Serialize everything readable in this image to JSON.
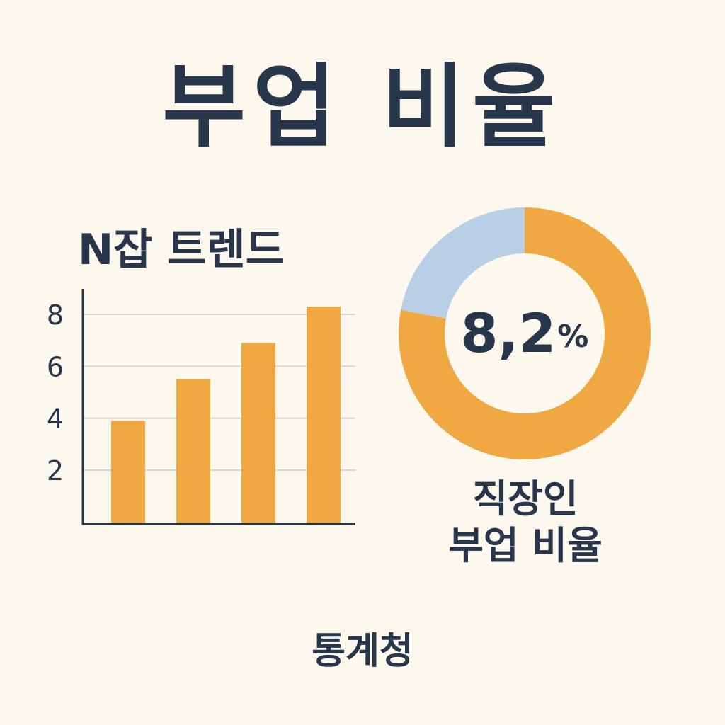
{
  "title": "부업 비율",
  "source": "통계청",
  "colors": {
    "background": "#FCF8EE",
    "text": "#27364B",
    "bar": "#F0A842",
    "donut_main": "#F0A842",
    "donut_rest": "#B8CFE5",
    "gridline": "#D5D5D5"
  },
  "chart_data": [
    {
      "type": "bar",
      "title": "N잡 트렌드",
      "categories": [
        "",
        "",
        "",
        ""
      ],
      "values": [
        3.9,
        5.5,
        6.9,
        8.3
      ],
      "yticks": [
        2,
        4,
        6,
        8
      ],
      "ylim": [
        0,
        9
      ],
      "xlabel": "",
      "ylabel": "",
      "grid": true
    },
    {
      "type": "pie",
      "style": "donut",
      "center_value": "8,2",
      "center_unit": "%",
      "label_lines": [
        "직장인",
        "부업 비율"
      ],
      "slices": [
        {
          "value": 78,
          "color": "#F0A842"
        },
        {
          "value": 22,
          "color": "#B8CFE5"
        }
      ]
    }
  ]
}
